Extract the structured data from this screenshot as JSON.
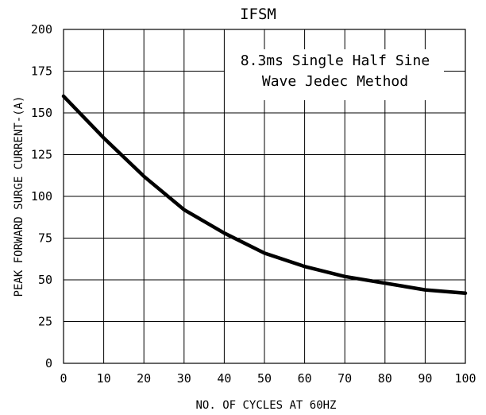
{
  "chart_data": {
    "type": "line",
    "title": "IFSM",
    "xlabel": "NO. OF CYCLES AT 60HZ",
    "ylabel": "PEAK FORWARD SURGE CURRENT-(A)",
    "annotation": [
      "8.3ms Single Half Sine",
      "Wave Jedec Method"
    ],
    "xlim": [
      0,
      100
    ],
    "ylim": [
      0,
      200
    ],
    "xticks": [
      "0",
      "10",
      "20",
      "30",
      "40",
      "50",
      "60",
      "70",
      "80",
      "90",
      "100"
    ],
    "yticks": [
      "0",
      "25",
      "50",
      "75",
      "100",
      "125",
      "150",
      "175",
      "200"
    ],
    "grid": true,
    "series": [
      {
        "x": [
          0,
          10,
          20,
          30,
          40,
          50,
          60,
          70,
          80,
          90,
          100
        ],
        "y": [
          160,
          135,
          112,
          92,
          78,
          66,
          58,
          52,
          48,
          44,
          42
        ]
      }
    ]
  }
}
